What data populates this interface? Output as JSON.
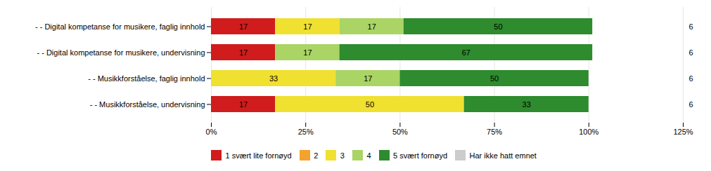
{
  "chart_data": {
    "type": "bar",
    "orientation": "horizontal",
    "stacked": true,
    "categories": [
      "- - Digital kompetanse for musikere, faglig innhold",
      "- - Digital kompetanse for musikere, undervisning",
      "- - Musikkforståelse, faglig innhold",
      "- - Musikkforståelse, undervisning"
    ],
    "series": [
      {
        "name": "1 svært lite fornøyd",
        "color": "#d01c1c",
        "values": [
          17,
          17,
          0,
          17
        ]
      },
      {
        "name": "2",
        "color": "#f4a22d",
        "values": [
          0,
          0,
          0,
          0
        ]
      },
      {
        "name": "3",
        "color": "#f0e030",
        "values": [
          17,
          0,
          33,
          50
        ]
      },
      {
        "name": "4",
        "color": "#aad464",
        "values": [
          17,
          17,
          17,
          0
        ]
      },
      {
        "name": "5 svært fornøyd",
        "color": "#2e8b2e",
        "values": [
          50,
          67,
          50,
          33
        ]
      },
      {
        "name": "Har ikke hatt emnet",
        "color": "#cccccc",
        "values": [
          0,
          0,
          0,
          0
        ]
      }
    ],
    "n_values": [
      6,
      6,
      6,
      6
    ],
    "xlim": [
      0,
      125
    ],
    "xticks": [
      {
        "value": 0,
        "label": "0%"
      },
      {
        "value": 25,
        "label": "25%"
      },
      {
        "value": 50,
        "label": "50%"
      },
      {
        "value": 75,
        "label": "75%"
      },
      {
        "value": 100,
        "label": "100%"
      },
      {
        "value": 125,
        "label": "125%"
      }
    ],
    "grid": true,
    "data_labels": true,
    "legend": "bottom"
  }
}
